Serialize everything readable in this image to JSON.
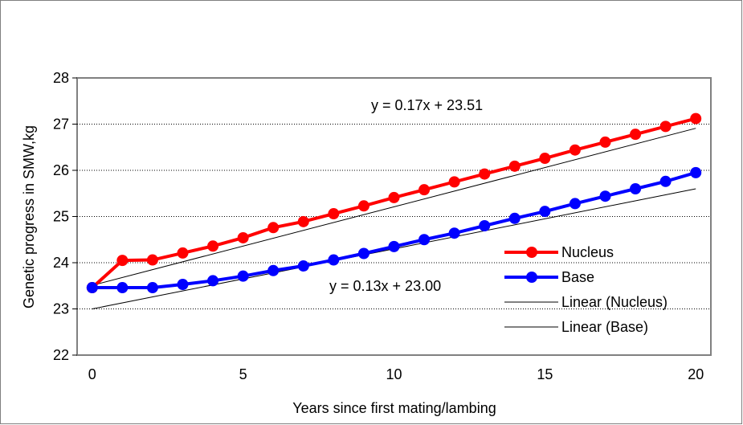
{
  "chart_data": {
    "type": "line",
    "xlabel": "Years since first mating/lambing",
    "ylabel": "Genetic progress in SMW,kg",
    "xlim": [
      -0.5,
      20.5
    ],
    "ylim": [
      22,
      28
    ],
    "xticks": [
      "0",
      "5",
      "10",
      "15",
      "20"
    ],
    "yticks": [
      "22",
      "23",
      "24",
      "25",
      "26",
      "27",
      "28"
    ],
    "grid": "horizontal dotted",
    "legend_position": "lower-right",
    "x": [
      0,
      1,
      2,
      3,
      4,
      5,
      6,
      7,
      8,
      9,
      10,
      11,
      12,
      13,
      14,
      15,
      16,
      17,
      18,
      19,
      20
    ],
    "series": [
      {
        "name": "Nucleus",
        "color": "#ff0000",
        "values": [
          23.46,
          24.05,
          24.06,
          24.21,
          24.36,
          24.54,
          24.76,
          24.89,
          25.06,
          25.23,
          25.41,
          25.58,
          25.75,
          25.92,
          26.09,
          26.26,
          26.44,
          26.61,
          26.78,
          26.95,
          27.12
        ]
      },
      {
        "name": "Base",
        "color": "#0000ff",
        "values": [
          23.46,
          23.46,
          23.46,
          23.53,
          23.61,
          23.71,
          23.83,
          23.93,
          24.06,
          24.2,
          24.35,
          24.5,
          24.64,
          24.8,
          24.96,
          25.11,
          25.28,
          25.44,
          25.6,
          25.76,
          25.95
        ]
      }
    ],
    "trendlines": [
      {
        "name": "Linear (Nucleus)",
        "slope": 0.17,
        "intercept": 23.51,
        "equation": "y = 0.17x + 23.51"
      },
      {
        "name": "Linear (Base)",
        "slope": 0.13,
        "intercept": 23.0,
        "equation": "y = 0.13x + 23.00"
      }
    ]
  }
}
